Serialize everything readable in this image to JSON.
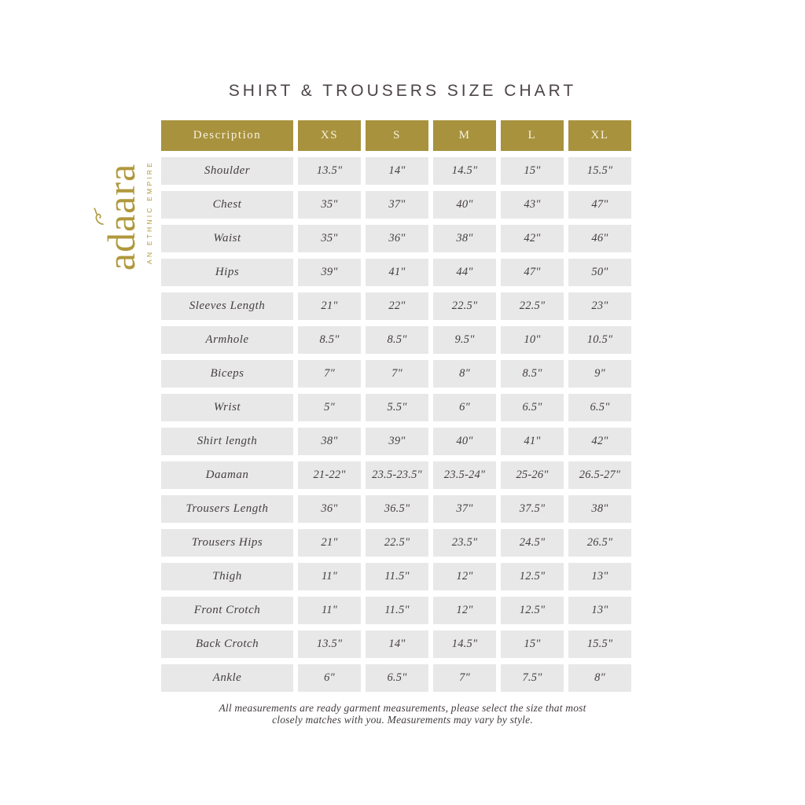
{
  "page": {
    "title": "SHIRT & TROUSERS SIZE CHART"
  },
  "logo": {
    "name": "adaara",
    "tagline": "AN ETHNIC EMPIRE"
  },
  "footer": {
    "line1": "All measurements are ready garment measurements, please select the size that most",
    "line2": "closely matches with you. Measurements may vary by style."
  },
  "colors": {
    "gold_header": "#a8923d",
    "gold_logo": "#b0983c",
    "cell_background": "#e8e8e8",
    "text_dark": "#453e40",
    "header_text_cream": "#f7f2e0",
    "title_text": "#4c4449"
  },
  "chart_data": {
    "type": "table",
    "columns": [
      "Description",
      "XS",
      "S",
      "M",
      "L",
      "XL"
    ],
    "rows": [
      {
        "label": "Shoulder",
        "values": [
          "13.5\"",
          "14\"",
          "14.5\"",
          "15\"",
          "15.5\""
        ]
      },
      {
        "label": "Chest",
        "values": [
          "35\"",
          "37\"",
          "40\"",
          "43\"",
          "47\""
        ]
      },
      {
        "label": "Waist",
        "values": [
          "35\"",
          "36\"",
          "38\"",
          "42\"",
          "46\""
        ]
      },
      {
        "label": "Hips",
        "values": [
          "39\"",
          "41\"",
          "44\"",
          "47\"",
          "50\""
        ]
      },
      {
        "label": "Sleeves Length",
        "values": [
          "21\"",
          "22\"",
          "22.5\"",
          "22.5\"",
          "23\""
        ]
      },
      {
        "label": "Armhole",
        "values": [
          "8.5\"",
          "8.5\"",
          "9.5\"",
          "10\"",
          "10.5\""
        ]
      },
      {
        "label": "Biceps",
        "values": [
          "7\"",
          "7\"",
          "8\"",
          "8.5\"",
          "9\""
        ]
      },
      {
        "label": "Wrist",
        "values": [
          "5\"",
          "5.5\"",
          "6\"",
          "6.5\"",
          "6.5\""
        ]
      },
      {
        "label": "Shirt length",
        "values": [
          "38\"",
          "39\"",
          "40\"",
          "41\"",
          "42\""
        ]
      },
      {
        "label": "Daaman",
        "values": [
          "21-22\"",
          "23.5-23.5\"",
          "23.5-24\"",
          "25-26\"",
          "26.5-27\""
        ]
      },
      {
        "label": "Trousers Length",
        "values": [
          "36\"",
          "36.5\"",
          "37\"",
          "37.5\"",
          "38\""
        ]
      },
      {
        "label": "Trousers Hips",
        "values": [
          "21\"",
          "22.5\"",
          "23.5\"",
          "24.5\"",
          "26.5\""
        ]
      },
      {
        "label": "Thigh",
        "values": [
          "11\"",
          "11.5\"",
          "12\"",
          "12.5\"",
          "13\""
        ]
      },
      {
        "label": "Front Crotch",
        "values": [
          "11\"",
          "11.5\"",
          "12\"",
          "12.5\"",
          "13\""
        ]
      },
      {
        "label": "Back Crotch",
        "values": [
          "13.5\"",
          "14\"",
          "14.5\"",
          "15\"",
          "15.5\""
        ]
      },
      {
        "label": "Ankle",
        "values": [
          "6\"",
          "6.5\"",
          "7\"",
          "7.5\"",
          "8\""
        ]
      }
    ]
  }
}
